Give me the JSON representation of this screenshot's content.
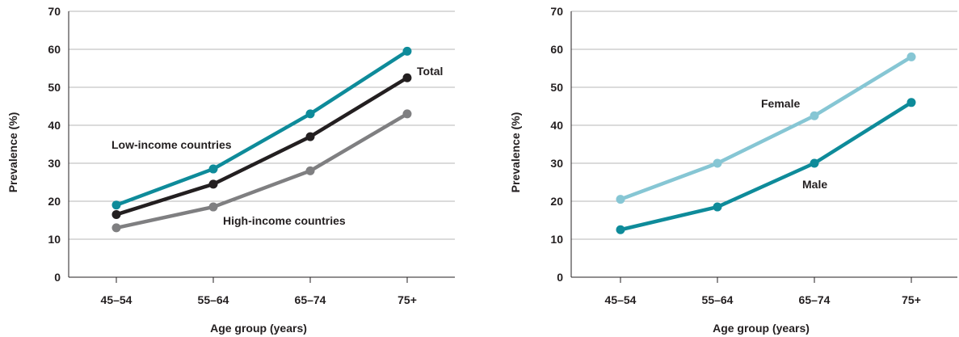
{
  "chart_data": [
    {
      "type": "line",
      "title": "",
      "xlabel": "Age group (years)",
      "ylabel": "Prevalence (%)",
      "categories": [
        "45–54",
        "55–64",
        "65–74",
        "75+"
      ],
      "yticks": [
        "0",
        "10",
        "20",
        "30",
        "40",
        "50",
        "60",
        "70"
      ],
      "ylim": [
        0,
        70
      ],
      "grid": true,
      "series": [
        {
          "name": "Low-income countries",
          "color": "#0e8b9a",
          "values": [
            19,
            28.5,
            43,
            59.5
          ]
        },
        {
          "name": "Total",
          "color": "#231f20",
          "values": [
            16.5,
            24.5,
            37,
            52.5
          ]
        },
        {
          "name": "High-income countries",
          "color": "#7f7f81",
          "values": [
            13,
            18.5,
            28,
            43
          ]
        }
      ]
    },
    {
      "type": "line",
      "title": "",
      "xlabel": "Age group (years)",
      "ylabel": "Prevalence (%)",
      "categories": [
        "45–54",
        "55–64",
        "65–74",
        "75+"
      ],
      "yticks": [
        "0",
        "10",
        "20",
        "30",
        "40",
        "50",
        "60",
        "70"
      ],
      "ylim": [
        0,
        70
      ],
      "grid": true,
      "series": [
        {
          "name": "Female",
          "color": "#86c6d4",
          "values": [
            20.5,
            30,
            42.5,
            58
          ]
        },
        {
          "name": "Male",
          "color": "#0e8b9a",
          "values": [
            12.5,
            18.5,
            30,
            46
          ]
        }
      ]
    }
  ]
}
